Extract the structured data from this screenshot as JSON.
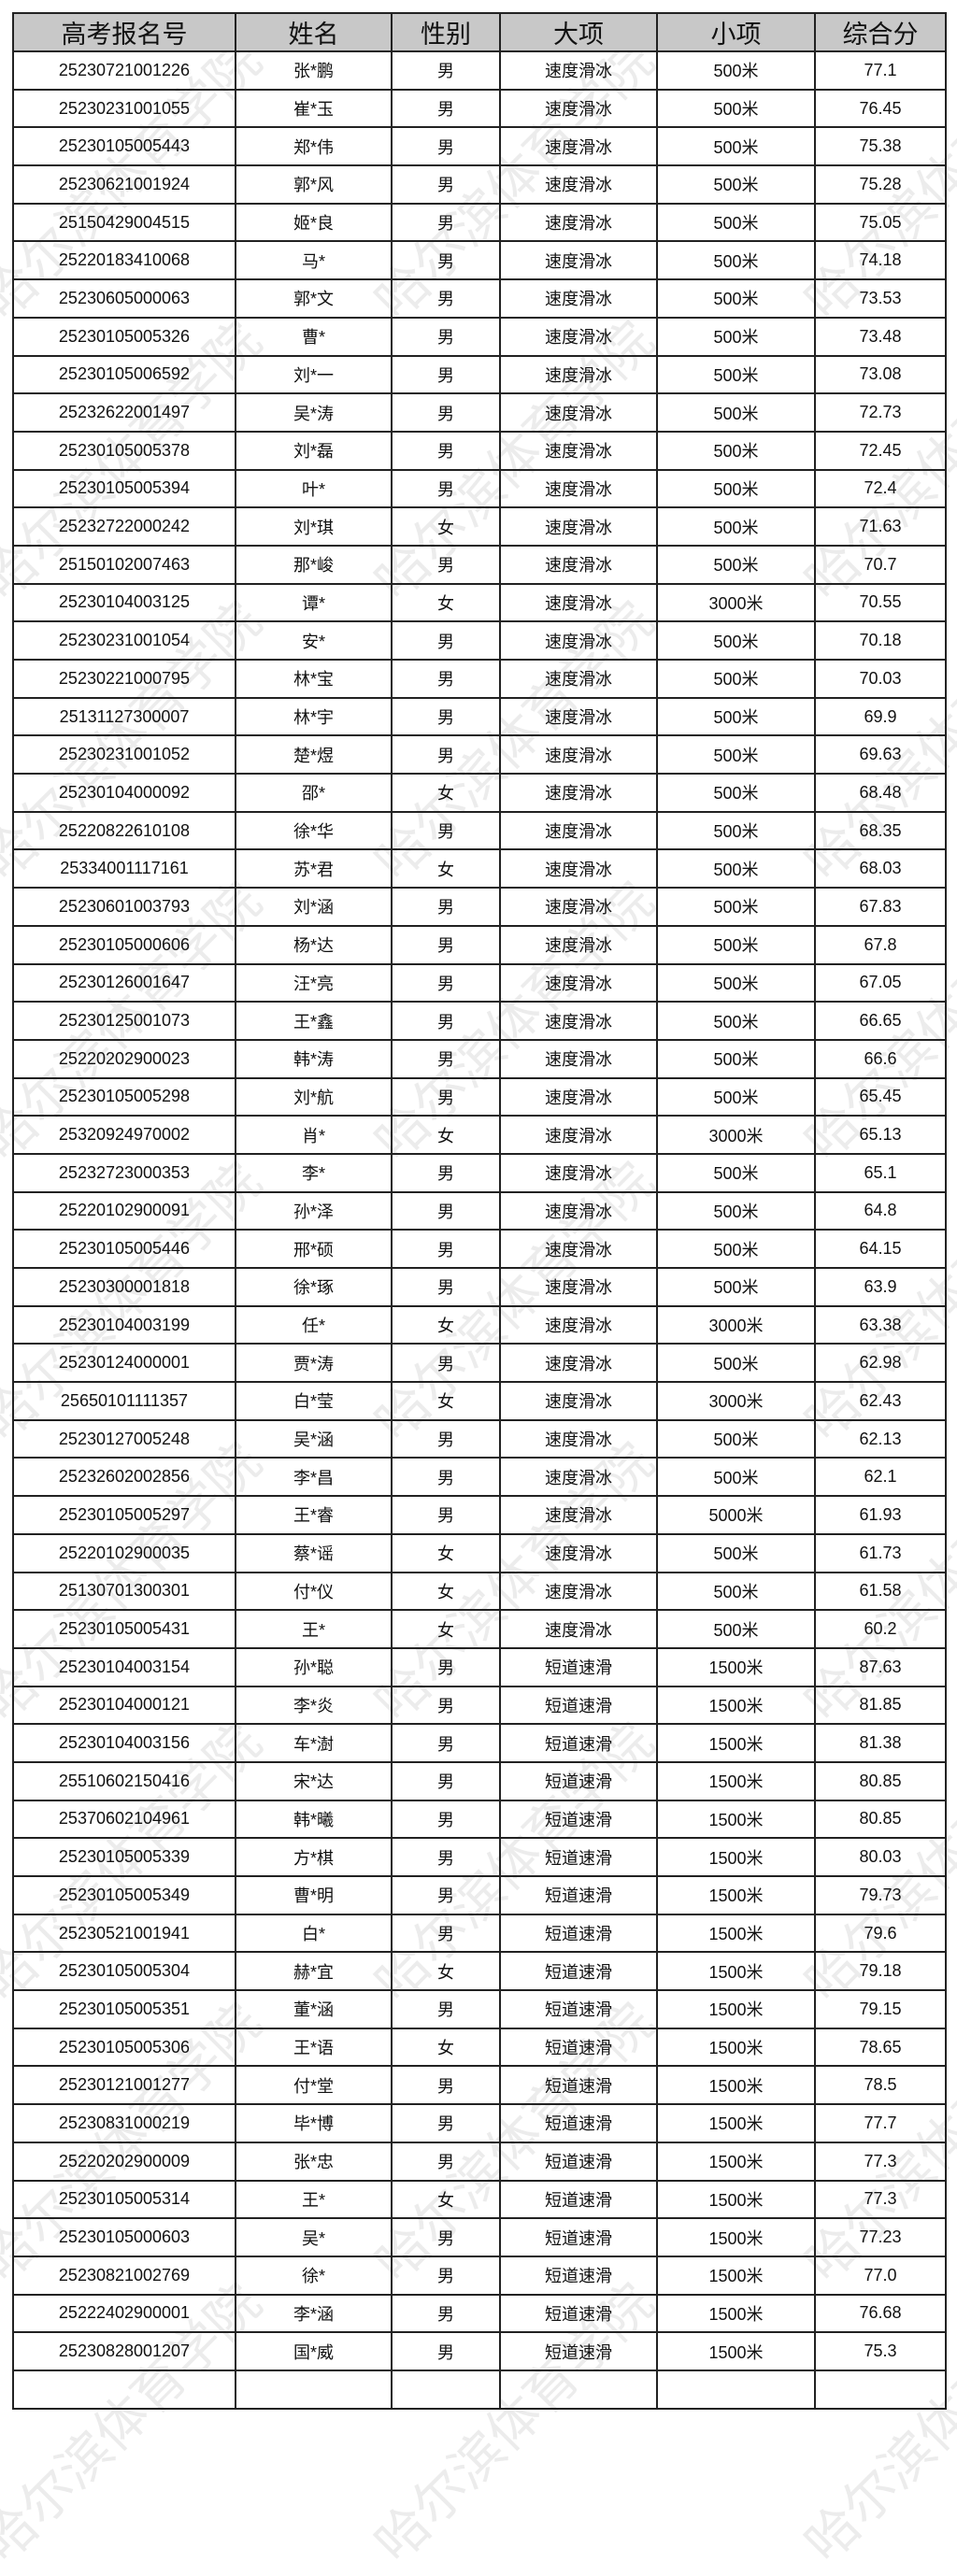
{
  "watermark": "哈尔滨体育学院",
  "columns": [
    "高考报名号",
    "姓名",
    "性别",
    "大项",
    "小项",
    "综合分"
  ],
  "rows": [
    [
      "25230721001226",
      "张*鹏",
      "男",
      "速度滑冰",
      "500米",
      "77.1"
    ],
    [
      "25230231001055",
      "崔*玉",
      "男",
      "速度滑冰",
      "500米",
      "76.45"
    ],
    [
      "25230105005443",
      "郑*伟",
      "男",
      "速度滑冰",
      "500米",
      "75.38"
    ],
    [
      "25230621001924",
      "郭*风",
      "男",
      "速度滑冰",
      "500米",
      "75.28"
    ],
    [
      "25150429004515",
      "姬*良",
      "男",
      "速度滑冰",
      "500米",
      "75.05"
    ],
    [
      "25220183410068",
      "马*",
      "男",
      "速度滑冰",
      "500米",
      "74.18"
    ],
    [
      "25230605000063",
      "郭*文",
      "男",
      "速度滑冰",
      "500米",
      "73.53"
    ],
    [
      "25230105005326",
      "曹*",
      "男",
      "速度滑冰",
      "500米",
      "73.48"
    ],
    [
      "25230105006592",
      "刘*一",
      "男",
      "速度滑冰",
      "500米",
      "73.08"
    ],
    [
      "25232622001497",
      "吴*涛",
      "男",
      "速度滑冰",
      "500米",
      "72.73"
    ],
    [
      "25230105005378",
      "刘*磊",
      "男",
      "速度滑冰",
      "500米",
      "72.45"
    ],
    [
      "25230105005394",
      "叶*",
      "男",
      "速度滑冰",
      "500米",
      "72.4"
    ],
    [
      "25232722000242",
      "刘*琪",
      "女",
      "速度滑冰",
      "500米",
      "71.63"
    ],
    [
      "25150102007463",
      "那*峻",
      "男",
      "速度滑冰",
      "500米",
      "70.7"
    ],
    [
      "25230104003125",
      "谭*",
      "女",
      "速度滑冰",
      "3000米",
      "70.55"
    ],
    [
      "25230231001054",
      "安*",
      "男",
      "速度滑冰",
      "500米",
      "70.18"
    ],
    [
      "25230221000795",
      "林*宝",
      "男",
      "速度滑冰",
      "500米",
      "70.03"
    ],
    [
      "25131127300007",
      "林*宇",
      "男",
      "速度滑冰",
      "500米",
      "69.9"
    ],
    [
      "25230231001052",
      "楚*煜",
      "男",
      "速度滑冰",
      "500米",
      "69.63"
    ],
    [
      "25230104000092",
      "邵*",
      "女",
      "速度滑冰",
      "500米",
      "68.48"
    ],
    [
      "25220822610108",
      "徐*华",
      "男",
      "速度滑冰",
      "500米",
      "68.35"
    ],
    [
      "25334001117161",
      "苏*君",
      "女",
      "速度滑冰",
      "500米",
      "68.03"
    ],
    [
      "25230601003793",
      "刘*涵",
      "男",
      "速度滑冰",
      "500米",
      "67.83"
    ],
    [
      "25230105000606",
      "杨*达",
      "男",
      "速度滑冰",
      "500米",
      "67.8"
    ],
    [
      "25230126001647",
      "汪*亮",
      "男",
      "速度滑冰",
      "500米",
      "67.05"
    ],
    [
      "25230125001073",
      "王*鑫",
      "男",
      "速度滑冰",
      "500米",
      "66.65"
    ],
    [
      "25220202900023",
      "韩*涛",
      "男",
      "速度滑冰",
      "500米",
      "66.6"
    ],
    [
      "25230105005298",
      "刘*航",
      "男",
      "速度滑冰",
      "500米",
      "65.45"
    ],
    [
      "25320924970002",
      "肖*",
      "女",
      "速度滑冰",
      "3000米",
      "65.13"
    ],
    [
      "25232723000353",
      "李*",
      "男",
      "速度滑冰",
      "500米",
      "65.1"
    ],
    [
      "25220102900091",
      "孙*泽",
      "男",
      "速度滑冰",
      "500米",
      "64.8"
    ],
    [
      "25230105005446",
      "邢*硕",
      "男",
      "速度滑冰",
      "500米",
      "64.15"
    ],
    [
      "25230300001818",
      "徐*琢",
      "男",
      "速度滑冰",
      "500米",
      "63.9"
    ],
    [
      "25230104003199",
      "任*",
      "女",
      "速度滑冰",
      "3000米",
      "63.38"
    ],
    [
      "25230124000001",
      "贾*涛",
      "男",
      "速度滑冰",
      "500米",
      "62.98"
    ],
    [
      "25650101111357",
      "白*莹",
      "女",
      "速度滑冰",
      "3000米",
      "62.43"
    ],
    [
      "25230127005248",
      "吴*涵",
      "男",
      "速度滑冰",
      "500米",
      "62.13"
    ],
    [
      "25232602002856",
      "李*昌",
      "男",
      "速度滑冰",
      "500米",
      "62.1"
    ],
    [
      "25230105005297",
      "王*睿",
      "男",
      "速度滑冰",
      "5000米",
      "61.93"
    ],
    [
      "25220102900035",
      "蔡*谣",
      "女",
      "速度滑冰",
      "500米",
      "61.73"
    ],
    [
      "25130701300301",
      "付*仪",
      "女",
      "速度滑冰",
      "500米",
      "61.58"
    ],
    [
      "25230105005431",
      "王*",
      "女",
      "速度滑冰",
      "500米",
      "60.2"
    ],
    [
      "25230104003154",
      "孙*聪",
      "男",
      "短道速滑",
      "1500米",
      "87.63"
    ],
    [
      "25230104000121",
      "李*炎",
      "男",
      "短道速滑",
      "1500米",
      "81.85"
    ],
    [
      "25230104003156",
      "车*澍",
      "男",
      "短道速滑",
      "1500米",
      "81.38"
    ],
    [
      "25510602150416",
      "宋*达",
      "男",
      "短道速滑",
      "1500米",
      "80.85"
    ],
    [
      "25370602104961",
      "韩*曦",
      "男",
      "短道速滑",
      "1500米",
      "80.85"
    ],
    [
      "25230105005339",
      "方*棋",
      "男",
      "短道速滑",
      "1500米",
      "80.03"
    ],
    [
      "25230105005349",
      "曹*明",
      "男",
      "短道速滑",
      "1500米",
      "79.73"
    ],
    [
      "25230521001941",
      "白*",
      "男",
      "短道速滑",
      "1500米",
      "79.6"
    ],
    [
      "25230105005304",
      "赫*宜",
      "女",
      "短道速滑",
      "1500米",
      "79.18"
    ],
    [
      "25230105005351",
      "董*涵",
      "男",
      "短道速滑",
      "1500米",
      "79.15"
    ],
    [
      "25230105005306",
      "王*语",
      "女",
      "短道速滑",
      "1500米",
      "78.65"
    ],
    [
      "25230121001277",
      "付*堂",
      "男",
      "短道速滑",
      "1500米",
      "78.5"
    ],
    [
      "25230831000219",
      "毕*博",
      "男",
      "短道速滑",
      "1500米",
      "77.7"
    ],
    [
      "25220202900009",
      "张*忠",
      "男",
      "短道速滑",
      "1500米",
      "77.3"
    ],
    [
      "25230105005314",
      "王*",
      "女",
      "短道速滑",
      "1500米",
      "77.3"
    ],
    [
      "25230105000603",
      "吴*",
      "男",
      "短道速滑",
      "1500米",
      "77.23"
    ],
    [
      "25230821002769",
      "徐*",
      "男",
      "短道速滑",
      "1500米",
      "77.0"
    ],
    [
      "25222402900001",
      "李*涵",
      "男",
      "短道速滑",
      "1500米",
      "76.68"
    ],
    [
      "25230828001207",
      "国*威",
      "男",
      "短道速滑",
      "1500米",
      "75.3"
    ]
  ]
}
